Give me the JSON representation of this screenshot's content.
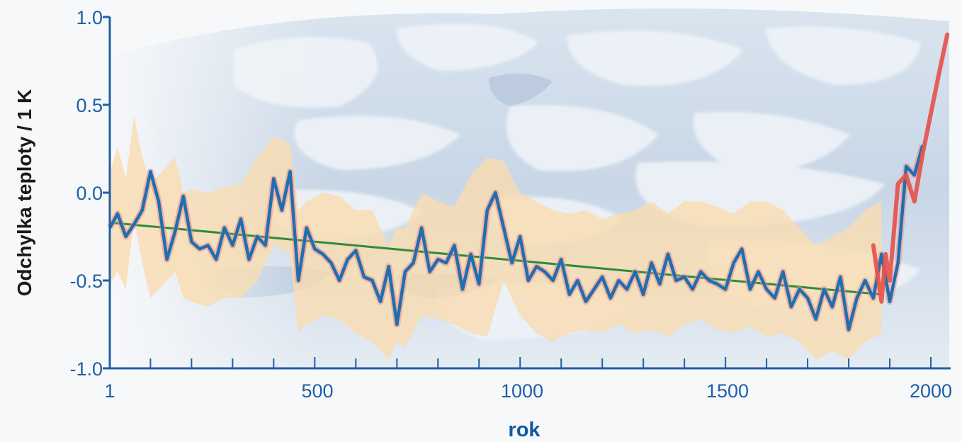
{
  "chart_data": {
    "type": "line",
    "xlabel": "rok",
    "ylabel": "Odchylka teploty  / 1 K",
    "xlim": [
      1,
      2000
    ],
    "ylim": [
      -1.0,
      1.0
    ],
    "x_ticks": [
      1,
      500,
      1000,
      1500,
      2000
    ],
    "x_tick_labels": [
      "1",
      "500",
      "1000",
      "1500",
      "2000"
    ],
    "y_ticks": [
      1.0,
      0.5,
      0.0,
      -0.5,
      -1.0
    ],
    "y_tick_labels": [
      "1.0",
      "0.5",
      "0.0",
      "-0.5",
      "-1.0"
    ],
    "grid": false,
    "background": "sea ice photo",
    "colors": {
      "axis": "#1f5fa6",
      "reconstruction": "#1f6fb0",
      "band": "#f9dcb0",
      "trend": "#2e8b3a",
      "instrumental": "#e5534b"
    },
    "series": [
      {
        "style": "uncertainty-band",
        "x": [
          1,
          20,
          40,
          60,
          80,
          100,
          120,
          140,
          160,
          180,
          200,
          240,
          280,
          320,
          360,
          400,
          440,
          460,
          480,
          520,
          560,
          600,
          640,
          680,
          700,
          720,
          760,
          800,
          840,
          880,
          920,
          960,
          1000,
          1040,
          1080,
          1120,
          1160,
          1200,
          1240,
          1280,
          1320,
          1360,
          1400,
          1440,
          1480,
          1520,
          1560,
          1600,
          1640,
          1680,
          1720,
          1760,
          1800,
          1840,
          1880
        ],
        "lower": [
          -0.52,
          -0.45,
          -0.55,
          -0.15,
          -0.4,
          -0.6,
          -0.55,
          -0.5,
          -0.45,
          -0.6,
          -0.62,
          -0.65,
          -0.6,
          -0.6,
          -0.5,
          -0.3,
          -0.35,
          -0.8,
          -0.75,
          -0.7,
          -0.72,
          -0.8,
          -0.85,
          -0.95,
          -0.85,
          -0.88,
          -0.7,
          -0.72,
          -0.75,
          -0.8,
          -0.82,
          -0.5,
          -0.7,
          -0.8,
          -0.85,
          -0.8,
          -0.78,
          -0.8,
          -0.75,
          -0.8,
          -0.78,
          -0.82,
          -0.75,
          -0.72,
          -0.78,
          -0.8,
          -0.76,
          -0.82,
          -0.8,
          -0.85,
          -0.95,
          -0.9,
          -0.95,
          -0.85,
          -0.8
        ],
        "upper": [
          0.12,
          0.26,
          0.08,
          0.44,
          0.2,
          0.05,
          0.1,
          0.15,
          0.2,
          0.0,
          0.02,
          0.0,
          0.03,
          0.05,
          0.2,
          0.32,
          0.28,
          -0.1,
          -0.05,
          0.0,
          -0.02,
          -0.1,
          -0.1,
          -0.3,
          -0.2,
          -0.2,
          0.0,
          -0.05,
          -0.08,
          0.1,
          0.2,
          0.18,
          0.0,
          -0.05,
          -0.1,
          -0.12,
          -0.1,
          -0.15,
          -0.12,
          -0.1,
          -0.05,
          -0.12,
          -0.05,
          -0.05,
          -0.08,
          -0.12,
          -0.05,
          -0.05,
          -0.1,
          -0.2,
          -0.3,
          -0.25,
          -0.2,
          -0.1,
          -0.05
        ]
      },
      {
        "style": "trend",
        "x": [
          1,
          1880
        ],
        "values": [
          -0.17,
          -0.58
        ]
      },
      {
        "style": "reconstruction",
        "x": [
          1,
          20,
          40,
          60,
          80,
          100,
          120,
          140,
          160,
          180,
          200,
          220,
          240,
          260,
          280,
          300,
          320,
          340,
          360,
          380,
          400,
          420,
          440,
          460,
          480,
          500,
          520,
          540,
          560,
          580,
          600,
          620,
          640,
          660,
          680,
          700,
          720,
          740,
          760,
          780,
          800,
          820,
          840,
          860,
          880,
          900,
          920,
          940,
          960,
          980,
          1000,
          1020,
          1040,
          1060,
          1080,
          1100,
          1120,
          1140,
          1160,
          1180,
          1200,
          1220,
          1240,
          1260,
          1280,
          1300,
          1320,
          1340,
          1360,
          1380,
          1400,
          1420,
          1440,
          1460,
          1480,
          1500,
          1520,
          1540,
          1560,
          1580,
          1600,
          1620,
          1640,
          1660,
          1680,
          1700,
          1720,
          1740,
          1760,
          1780,
          1800,
          1820,
          1840,
          1860,
          1880,
          1900,
          1920,
          1940,
          1960,
          1980
        ],
        "values": [
          -0.2,
          -0.12,
          -0.25,
          -0.18,
          -0.1,
          0.12,
          -0.05,
          -0.38,
          -0.22,
          -0.02,
          -0.28,
          -0.32,
          -0.3,
          -0.38,
          -0.2,
          -0.3,
          -0.15,
          -0.38,
          -0.25,
          -0.3,
          0.08,
          -0.1,
          0.12,
          -0.5,
          -0.2,
          -0.32,
          -0.35,
          -0.4,
          -0.5,
          -0.38,
          -0.33,
          -0.48,
          -0.5,
          -0.62,
          -0.42,
          -0.75,
          -0.45,
          -0.4,
          -0.2,
          -0.45,
          -0.38,
          -0.4,
          -0.3,
          -0.55,
          -0.35,
          -0.52,
          -0.1,
          0.0,
          -0.2,
          -0.4,
          -0.25,
          -0.5,
          -0.42,
          -0.45,
          -0.5,
          -0.38,
          -0.58,
          -0.5,
          -0.62,
          -0.55,
          -0.48,
          -0.6,
          -0.5,
          -0.55,
          -0.45,
          -0.58,
          -0.4,
          -0.52,
          -0.35,
          -0.5,
          -0.48,
          -0.55,
          -0.45,
          -0.5,
          -0.52,
          -0.55,
          -0.4,
          -0.32,
          -0.55,
          -0.45,
          -0.55,
          -0.6,
          -0.45,
          -0.65,
          -0.55,
          -0.6,
          -0.72,
          -0.55,
          -0.65,
          -0.48,
          -0.78,
          -0.6,
          -0.5,
          -0.6,
          -0.35,
          -0.62,
          -0.4,
          0.15,
          0.1,
          0.27
        ]
      },
      {
        "style": "instrumental",
        "x": [
          1860,
          1880,
          1890,
          1900,
          1920,
          1940,
          1960,
          1980,
          2000,
          2020,
          2040
        ],
        "values": [
          -0.3,
          -0.62,
          -0.35,
          -0.5,
          0.05,
          0.1,
          -0.05,
          0.22,
          0.45,
          0.68,
          0.9
        ]
      }
    ]
  }
}
